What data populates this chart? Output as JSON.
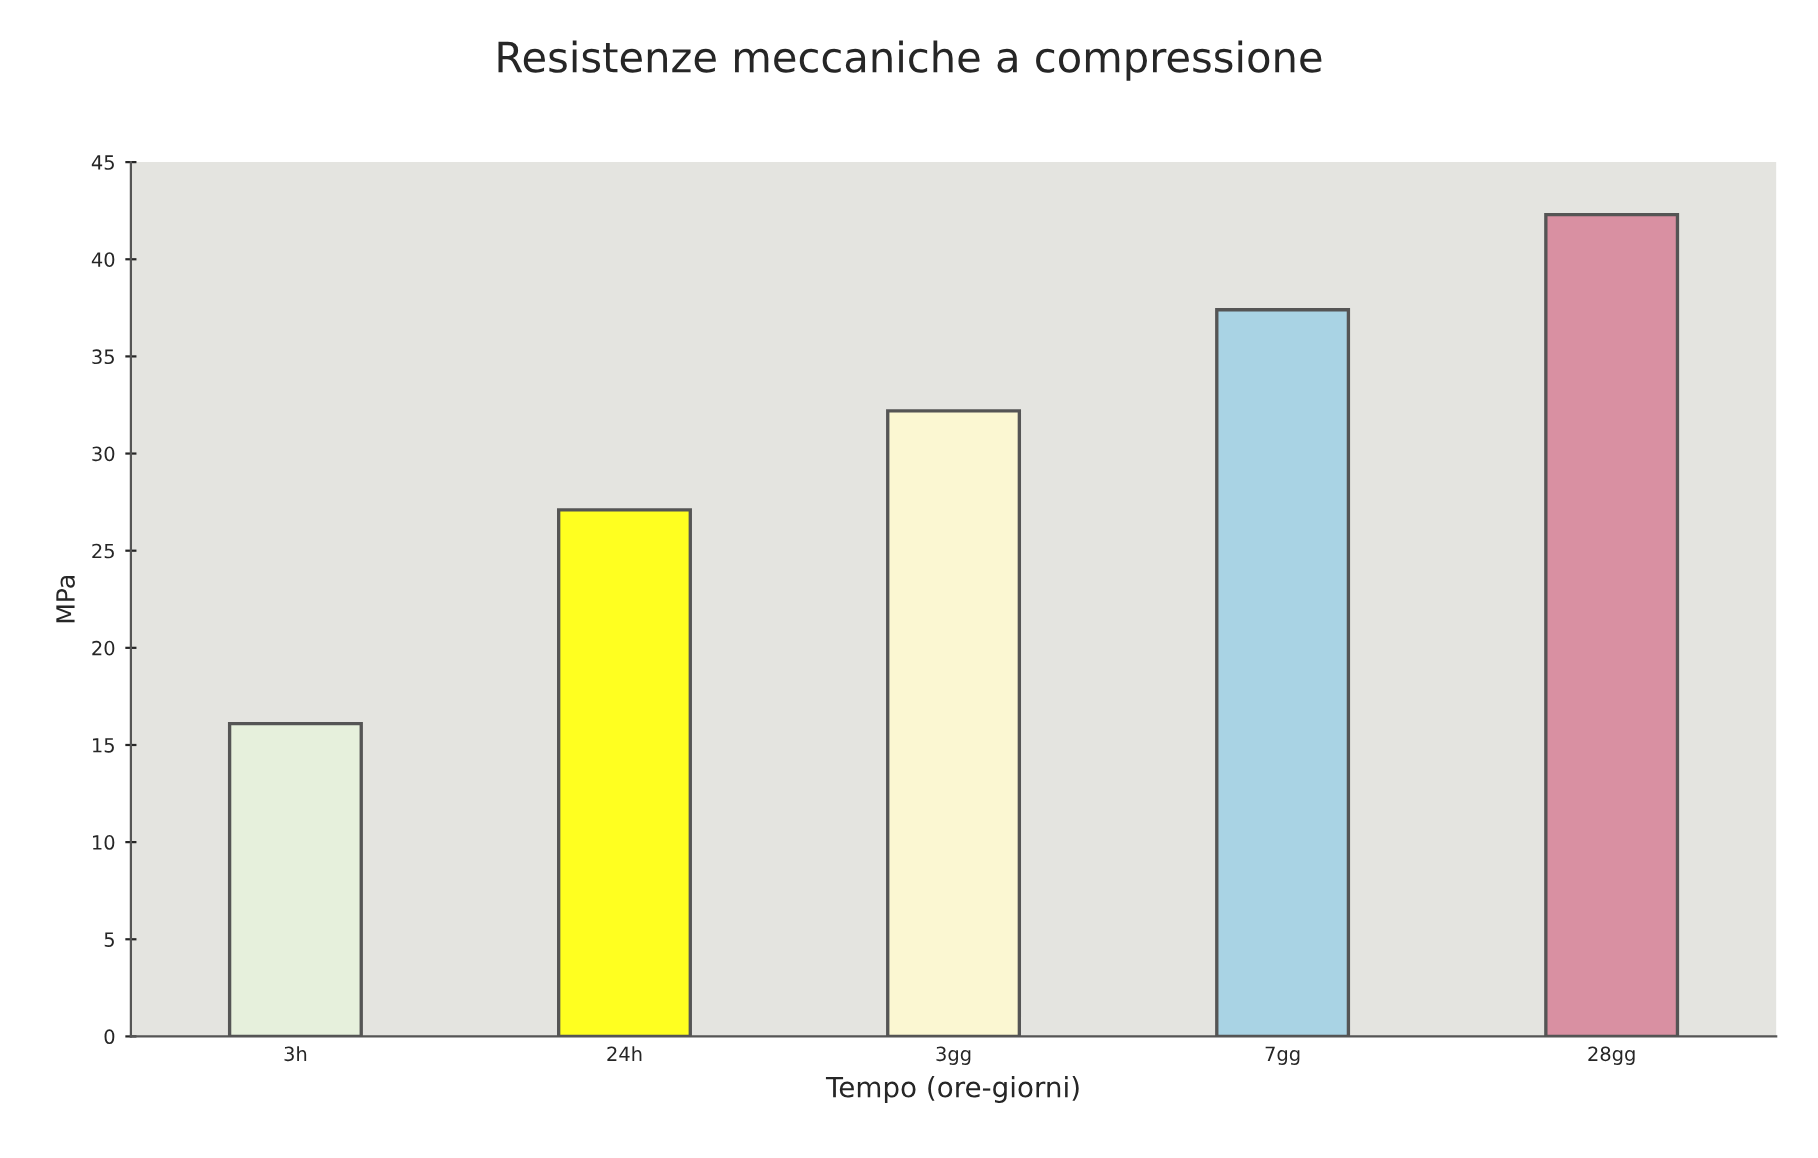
{
  "chart_data": {
    "type": "bar",
    "title": "Resistenze meccaniche a compressione",
    "xlabel": "Tempo (ore-giorni)",
    "ylabel": "MPa",
    "categories": [
      "3h",
      "24h",
      "3gg",
      "7gg",
      "28gg"
    ],
    "values": [
      16.1,
      27.1,
      32.2,
      37.4,
      42.3
    ],
    "colors": [
      "#e6f0dc",
      "#ffff20",
      "#fbf7d2",
      "#a9d3e4",
      "#d990a2"
    ],
    "ylim": [
      0,
      45
    ],
    "yticks": [
      0,
      5,
      10,
      15,
      20,
      25,
      30,
      35,
      40,
      45
    ],
    "grid": false
  }
}
